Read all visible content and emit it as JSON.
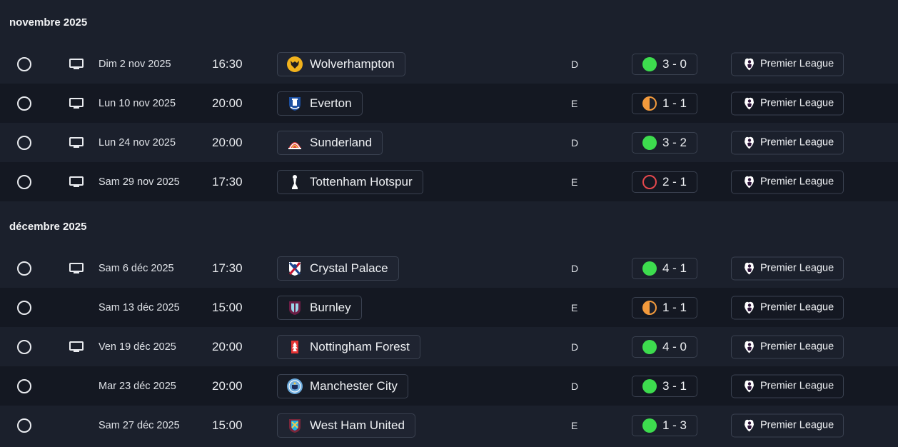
{
  "sections": [
    {
      "month": "novembre 2025",
      "matches": [
        {
          "tv": true,
          "date": "Dim 2 nov 2025",
          "time": "16:30",
          "opponent": "Wolverhampton",
          "crest": "wolves",
          "venue": "D",
          "result": "win",
          "score": "3 - 0",
          "competition": "Premier League"
        },
        {
          "tv": true,
          "date": "Lun 10 nov 2025",
          "time": "20:00",
          "opponent": "Everton",
          "crest": "everton",
          "venue": "E",
          "result": "draw",
          "score": "1 - 1",
          "competition": "Premier League"
        },
        {
          "tv": true,
          "date": "Lun 24 nov 2025",
          "time": "20:00",
          "opponent": "Sunderland",
          "crest": "sunderland",
          "venue": "D",
          "result": "win",
          "score": "3 - 2",
          "competition": "Premier League"
        },
        {
          "tv": true,
          "date": "Sam 29 nov 2025",
          "time": "17:30",
          "opponent": "Tottenham Hotspur",
          "crest": "tottenham",
          "venue": "E",
          "result": "loss",
          "score": "2 - 1",
          "competition": "Premier League"
        }
      ]
    },
    {
      "month": "décembre 2025",
      "matches": [
        {
          "tv": true,
          "date": "Sam 6 déc 2025",
          "time": "17:30",
          "opponent": "Crystal Palace",
          "crest": "crystal-palace",
          "venue": "D",
          "result": "win",
          "score": "4 - 1",
          "competition": "Premier League"
        },
        {
          "tv": false,
          "date": "Sam 13 déc 2025",
          "time": "15:00",
          "opponent": "Burnley",
          "crest": "burnley",
          "venue": "E",
          "result": "draw",
          "score": "1 - 1",
          "competition": "Premier League"
        },
        {
          "tv": true,
          "date": "Ven 19 déc 2025",
          "time": "20:00",
          "opponent": "Nottingham Forest",
          "crest": "nottingham-forest",
          "venue": "D",
          "result": "win",
          "score": "4 - 0",
          "competition": "Premier League"
        },
        {
          "tv": false,
          "date": "Mar 23 déc 2025",
          "time": "20:00",
          "opponent": "Manchester City",
          "crest": "manchester-city",
          "venue": "D",
          "result": "win",
          "score": "3 - 1",
          "competition": "Premier League"
        },
        {
          "tv": false,
          "date": "Sam 27 déc 2025",
          "time": "15:00",
          "opponent": "West Ham United",
          "crest": "west-ham",
          "venue": "E",
          "result": "win",
          "score": "1 - 3",
          "competition": "Premier League"
        }
      ]
    }
  ],
  "colors": {
    "win": "#3ddc4e",
    "draw": "#f39a3c",
    "loss": "#e5484d",
    "background": "#1b202c",
    "row_alt": "#141822"
  }
}
